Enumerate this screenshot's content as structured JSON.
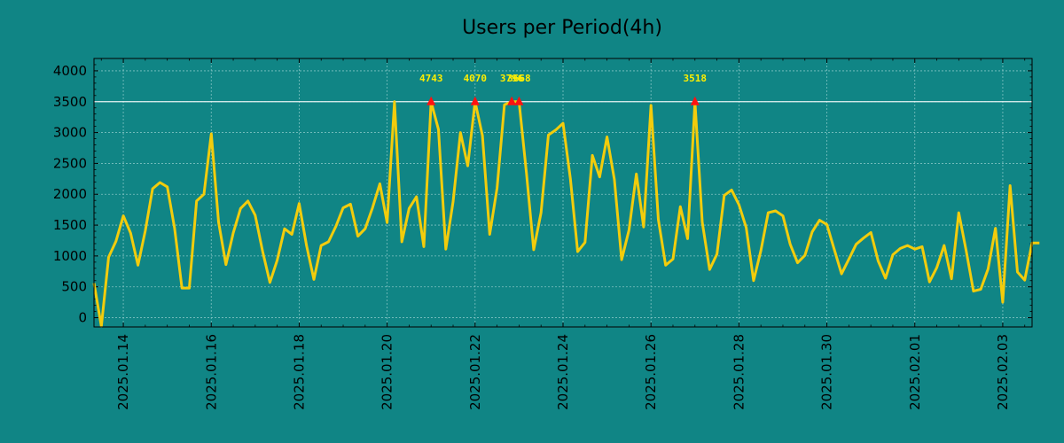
{
  "colors": {
    "background": "#108585",
    "plot_background": "#108585",
    "line": "#f2cc0c",
    "threshold": "#e8f4f4",
    "marker": "#ff1111",
    "peak_label": "#ffee00",
    "grid": "#7fc2c2",
    "axis": "#000000",
    "text": "#000000"
  },
  "chart_data": {
    "type": "line",
    "title": "Users per Period(4h)",
    "xlabel": "",
    "ylabel": "",
    "x_type": "datetime",
    "x_start": "2025-01-13 08:00",
    "x_interval_hours": 4,
    "xlim": [
      "2025-01-13 08:00",
      "2025-02-03 16:00"
    ],
    "ylim": [
      -150,
      4200
    ],
    "yticks": [
      0,
      500,
      1000,
      1500,
      2000,
      2500,
      3000,
      3500,
      4000
    ],
    "xtick_labels": [
      "2025.01.14",
      "2025.01.16",
      "2025.01.18",
      "2025.01.20",
      "2025.01.22",
      "2025.01.24",
      "2025.01.26",
      "2025.01.28",
      "2025.01.30",
      "2025.02.01",
      "2025.02.03"
    ],
    "grid": true,
    "threshold": 3500,
    "series": [
      {
        "values": [
          560,
          -140,
          980,
          1240,
          1650,
          1370,
          850,
          1410,
          2090,
          2190,
          2120,
          1450,
          480,
          480,
          1890,
          2000,
          2980,
          1550,
          860,
          1370,
          1770,
          1890,
          1660,
          1080,
          570,
          930,
          1440,
          1350,
          1850,
          1170,
          620,
          1170,
          1230,
          1480,
          1780,
          1840,
          1320,
          1440,
          1780,
          2170,
          1540,
          3500,
          1230,
          1770,
          1960,
          1150,
          3500,
          3050,
          1110,
          1880,
          3000,
          2460,
          3500,
          2950,
          1350,
          2100,
          3450,
          3500,
          3500,
          2350,
          1100,
          1700,
          2960,
          3040,
          3150,
          2250,
          1070,
          1220,
          2630,
          2280,
          2930,
          2240,
          940,
          1420,
          2330,
          1470,
          3440,
          1590,
          850,
          950,
          1800,
          1280,
          3500,
          1550,
          780,
          1030,
          1980,
          2070,
          1830,
          1460,
          600,
          1090,
          1700,
          1730,
          1650,
          1190,
          890,
          1010,
          1390,
          1580,
          1510,
          1110,
          710,
          950,
          1190,
          1290,
          1380,
          920,
          640,
          1020,
          1120,
          1170,
          1110,
          1150,
          580,
          810,
          1170,
          630,
          1700,
          1090,
          430,
          460,
          790,
          1450,
          250,
          2140,
          740,
          610,
          1210,
          1210
        ]
      }
    ],
    "annotations": [
      {
        "x_index": 46,
        "y": 3500,
        "label": "4743"
      },
      {
        "x_index": 52,
        "y": 3500,
        "label": "4070"
      },
      {
        "x_index": 57,
        "y": 3500,
        "label": "3796"
      },
      {
        "x_index": 58,
        "y": 3500,
        "label": "3668"
      },
      {
        "x_index": 82,
        "y": 3500,
        "label": "3518"
      }
    ]
  }
}
